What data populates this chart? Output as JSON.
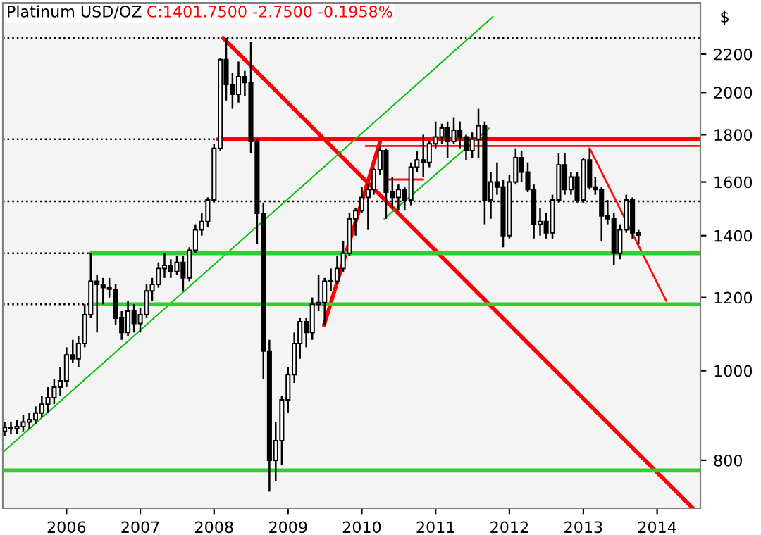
{
  "chart_data": {
    "type": "candlestick",
    "title": "Platinum USD/OZ",
    "subtitle": "C:1401.7500 -2.7500 -0.1958%",
    "ylabel": "$",
    "log": "y",
    "x": [
      "2005-03",
      "2005-04",
      "2005-05",
      "2005-06",
      "2005-07",
      "2005-08",
      "2005-09",
      "2005-10",
      "2005-11",
      "2005-12",
      "2006-01",
      "2006-02",
      "2006-03",
      "2006-04",
      "2006-05",
      "2006-06",
      "2006-07",
      "2006-08",
      "2006-09",
      "2006-10",
      "2006-11",
      "2006-12",
      "2007-01",
      "2007-02",
      "2007-03",
      "2007-04",
      "2007-05",
      "2007-06",
      "2007-07",
      "2007-08",
      "2007-09",
      "2007-10",
      "2007-11",
      "2007-12",
      "2008-01",
      "2008-02",
      "2008-03",
      "2008-04",
      "2008-05",
      "2008-06",
      "2008-07",
      "2008-08",
      "2008-09",
      "2008-10",
      "2008-11",
      "2008-12",
      "2009-01",
      "2009-02",
      "2009-03",
      "2009-04",
      "2009-05",
      "2009-06",
      "2009-07",
      "2009-08",
      "2009-09",
      "2009-10",
      "2009-11",
      "2009-12",
      "2010-01",
      "2010-02",
      "2010-03",
      "2010-04",
      "2010-05",
      "2010-06",
      "2010-07",
      "2010-08",
      "2010-09",
      "2010-10",
      "2010-11",
      "2010-12",
      "2011-01",
      "2011-02",
      "2011-03",
      "2011-04",
      "2011-05",
      "2011-06",
      "2011-07",
      "2011-08",
      "2011-09",
      "2011-10",
      "2011-11",
      "2011-12",
      "2012-01",
      "2012-02",
      "2012-03",
      "2012-04",
      "2012-05",
      "2012-06",
      "2012-07",
      "2012-08",
      "2012-09",
      "2012-10",
      "2012-11",
      "2012-12",
      "2013-01",
      "2013-02",
      "2013-03",
      "2013-04",
      "2013-05",
      "2013-06",
      "2013-07",
      "2013-08",
      "2013-09",
      "2013-10"
    ],
    "ohlc": [
      [
        860,
        880,
        850,
        868
      ],
      [
        868,
        880,
        855,
        866
      ],
      [
        866,
        885,
        855,
        870
      ],
      [
        870,
        895,
        860,
        880
      ],
      [
        880,
        900,
        865,
        885
      ],
      [
        885,
        915,
        875,
        900
      ],
      [
        900,
        940,
        890,
        920
      ],
      [
        920,
        960,
        900,
        935
      ],
      [
        935,
        980,
        920,
        960
      ],
      [
        960,
        1010,
        940,
        975
      ],
      [
        975,
        1060,
        960,
        1040
      ],
      [
        1040,
        1080,
        1020,
        1030
      ],
      [
        1030,
        1090,
        1010,
        1070
      ],
      [
        1070,
        1180,
        1060,
        1150
      ],
      [
        1150,
        1340,
        1140,
        1250
      ],
      [
        1250,
        1270,
        1100,
        1240
      ],
      [
        1240,
        1260,
        1180,
        1230
      ],
      [
        1230,
        1260,
        1200,
        1225
      ],
      [
        1225,
        1240,
        1120,
        1140
      ],
      [
        1140,
        1160,
        1080,
        1100
      ],
      [
        1100,
        1190,
        1090,
        1160
      ],
      [
        1160,
        1180,
        1100,
        1125
      ],
      [
        1125,
        1170,
        1100,
        1150
      ],
      [
        1150,
        1240,
        1140,
        1220
      ],
      [
        1220,
        1260,
        1190,
        1240
      ],
      [
        1240,
        1310,
        1230,
        1290
      ],
      [
        1290,
        1340,
        1260,
        1300
      ],
      [
        1300,
        1320,
        1260,
        1280
      ],
      [
        1280,
        1330,
        1270,
        1310
      ],
      [
        1310,
        1330,
        1220,
        1260
      ],
      [
        1260,
        1360,
        1250,
        1350
      ],
      [
        1350,
        1440,
        1340,
        1420
      ],
      [
        1420,
        1480,
        1400,
        1450
      ],
      [
        1450,
        1540,
        1430,
        1530
      ],
      [
        1530,
        1760,
        1520,
        1740
      ],
      [
        1740,
        2180,
        1730,
        2170
      ],
      [
        2170,
        2290,
        1960,
        2040
      ],
      [
        2040,
        2100,
        1920,
        1990
      ],
      [
        1990,
        2160,
        1950,
        2080
      ],
      [
        2080,
        2110,
        1980,
        2050
      ],
      [
        2050,
        2270,
        1720,
        1770
      ],
      [
        1770,
        1780,
        1370,
        1480
      ],
      [
        1480,
        1520,
        980,
        1050
      ],
      [
        1050,
        1080,
        740,
        800
      ],
      [
        800,
        880,
        760,
        840
      ],
      [
        840,
        940,
        790,
        930
      ],
      [
        930,
        1010,
        900,
        990
      ],
      [
        990,
        1100,
        970,
        1070
      ],
      [
        1070,
        1140,
        1030,
        1130
      ],
      [
        1130,
        1140,
        1060,
        1100
      ],
      [
        1100,
        1200,
        1080,
        1180
      ],
      [
        1180,
        1270,
        1160,
        1185
      ],
      [
        1185,
        1260,
        1120,
        1250
      ],
      [
        1250,
        1290,
        1220,
        1250
      ],
      [
        1250,
        1330,
        1240,
        1290
      ],
      [
        1290,
        1380,
        1280,
        1340
      ],
      [
        1340,
        1480,
        1330,
        1460
      ],
      [
        1460,
        1500,
        1400,
        1490
      ],
      [
        1490,
        1580,
        1480,
        1540
      ],
      [
        1540,
        1590,
        1420,
        1570
      ],
      [
        1570,
        1660,
        1550,
        1650
      ],
      [
        1650,
        1750,
        1630,
        1730
      ],
      [
        1730,
        1740,
        1460,
        1560
      ],
      [
        1560,
        1620,
        1500,
        1540
      ],
      [
        1540,
        1590,
        1490,
        1570
      ],
      [
        1570,
        1580,
        1490,
        1530
      ],
      [
        1530,
        1680,
        1510,
        1660
      ],
      [
        1660,
        1730,
        1640,
        1690
      ],
      [
        1690,
        1800,
        1620,
        1680
      ],
      [
        1680,
        1770,
        1660,
        1760
      ],
      [
        1760,
        1860,
        1740,
        1790
      ],
      [
        1790,
        1850,
        1760,
        1830
      ],
      [
        1830,
        1860,
        1700,
        1770
      ],
      [
        1770,
        1880,
        1760,
        1820
      ],
      [
        1820,
        1860,
        1740,
        1790
      ],
      [
        1790,
        1800,
        1690,
        1730
      ],
      [
        1730,
        1810,
        1700,
        1780
      ],
      [
        1780,
        1920,
        1700,
        1840
      ],
      [
        1840,
        1860,
        1440,
        1530
      ],
      [
        1530,
        1640,
        1460,
        1600
      ],
      [
        1600,
        1680,
        1550,
        1580
      ],
      [
        1580,
        1610,
        1360,
        1400
      ],
      [
        1400,
        1630,
        1390,
        1600
      ],
      [
        1600,
        1740,
        1590,
        1700
      ],
      [
        1700,
        1730,
        1600,
        1640
      ],
      [
        1640,
        1680,
        1560,
        1570
      ],
      [
        1570,
        1590,
        1390,
        1440
      ],
      [
        1440,
        1500,
        1400,
        1450
      ],
      [
        1450,
        1480,
        1390,
        1410
      ],
      [
        1410,
        1550,
        1390,
        1530
      ],
      [
        1530,
        1720,
        1520,
        1670
      ],
      [
        1670,
        1720,
        1550,
        1570
      ],
      [
        1570,
        1640,
        1550,
        1620
      ],
      [
        1620,
        1640,
        1520,
        1530
      ],
      [
        1530,
        1700,
        1520,
        1690
      ],
      [
        1690,
        1740,
        1570,
        1580
      ],
      [
        1580,
        1620,
        1550,
        1570
      ],
      [
        1570,
        1580,
        1380,
        1470
      ],
      [
        1470,
        1530,
        1440,
        1460
      ],
      [
        1460,
        1480,
        1300,
        1340
      ],
      [
        1340,
        1440,
        1320,
        1420
      ],
      [
        1420,
        1550,
        1410,
        1530
      ],
      [
        1530,
        1540,
        1390,
        1410
      ],
      [
        1410,
        1420,
        1370,
        1401.75
      ]
    ],
    "series": [
      {
        "type": "line",
        "color": "#ff0000",
        "line_style": "solid",
        "x": [
          "2008-02-15",
          "2014-06-27"
        ],
        "values": [
          2290,
          710
        ]
      },
      {
        "type": "line",
        "color": "#ff1010",
        "line_style": "solid",
        "x": [
          "2013-02-01",
          "2014-02-15"
        ],
        "values": [
          1740,
          1190
        ]
      },
      {
        "type": "line",
        "color": "#ff0000",
        "line_style": "solid",
        "x": [
          "2009-06-28",
          "2010-04-05"
        ],
        "values": [
          1120,
          1780
        ]
      },
      {
        "type": "line",
        "color": "#ff0000",
        "line_style": "solid",
        "x": [
          "2008-01-20",
          "2014-08-03"
        ],
        "values": [
          1780,
          1780
        ]
      },
      {
        "type": "line",
        "color": "#ff1010",
        "line_style": "solid",
        "x": [
          "2010-01-20",
          "2014-08-03"
        ],
        "values": [
          1750,
          1750
        ]
      },
      {
        "type": "line",
        "color": "#ff1010",
        "line_style": "solid",
        "x": [
          "2010-05-01",
          "2010-11-01"
        ],
        "values": [
          1610,
          1610
        ]
      },
      {
        "type": "line",
        "color": "#00c000",
        "line_style": "solid",
        "x": [
          "2005-02-20",
          "2011-10-12"
        ],
        "values": [
          816,
          2415
        ]
      },
      {
        "type": "line",
        "color": "#00c000",
        "line_style": "solid",
        "x": [
          "2010-04-22",
          "2011-09-24"
        ],
        "values": [
          1460,
          1830
        ]
      },
      {
        "type": "line",
        "color": "#33cc33",
        "line_style": "solid",
        "x": [
          "2006-05-01",
          "2014-08-03"
        ],
        "values": [
          1340,
          1340
        ]
      },
      {
        "type": "line",
        "color": "#33cc33",
        "line_style": "solid",
        "x": [
          "2006-05-01",
          "2014-08-03"
        ],
        "values": [
          1180,
          1180
        ]
      },
      {
        "type": "line",
        "color": "#33cc33",
        "line_style": "solid",
        "x": [
          "2005-02-20",
          "2014-08-03"
        ],
        "values": [
          780,
          780
        ]
      }
    ],
    "ref_lines": [
      {
        "axis": "y",
        "value": 2290,
        "color": "#000000",
        "line_style": "dotted"
      },
      {
        "axis": "y",
        "value": 1525,
        "color": "#000000",
        "line_style": "dotted"
      },
      {
        "axis": "y",
        "value": 1780,
        "color": "#000000",
        "line_style": "dotted"
      },
      {
        "axis": "y",
        "value": 1340,
        "color": "#000000",
        "line_style": "dotted"
      },
      {
        "axis": "y",
        "value": 1180,
        "color": "#000000",
        "line_style": "dotted"
      }
    ],
    "xlim": [
      "2005-02-20",
      "2014-08-03"
    ],
    "xticks": [
      {
        "value": "2006",
        "label": "2006"
      },
      {
        "value": "2007",
        "label": "2007"
      },
      {
        "value": "2008",
        "label": "2008"
      },
      {
        "value": "2009",
        "label": "2009"
      },
      {
        "value": "2010",
        "label": "2010"
      },
      {
        "value": "2011",
        "label": "2011"
      },
      {
        "value": "2012",
        "label": "2012"
      },
      {
        "value": "2013",
        "label": "2013"
      },
      {
        "value": "2014",
        "label": "2014"
      }
    ],
    "ylim": [
      710,
      2500
    ],
    "yticks": [
      800,
      1000,
      1200,
      1400,
      1600,
      1800,
      2000,
      2200
    ],
    "grid": false,
    "legend": false
  }
}
